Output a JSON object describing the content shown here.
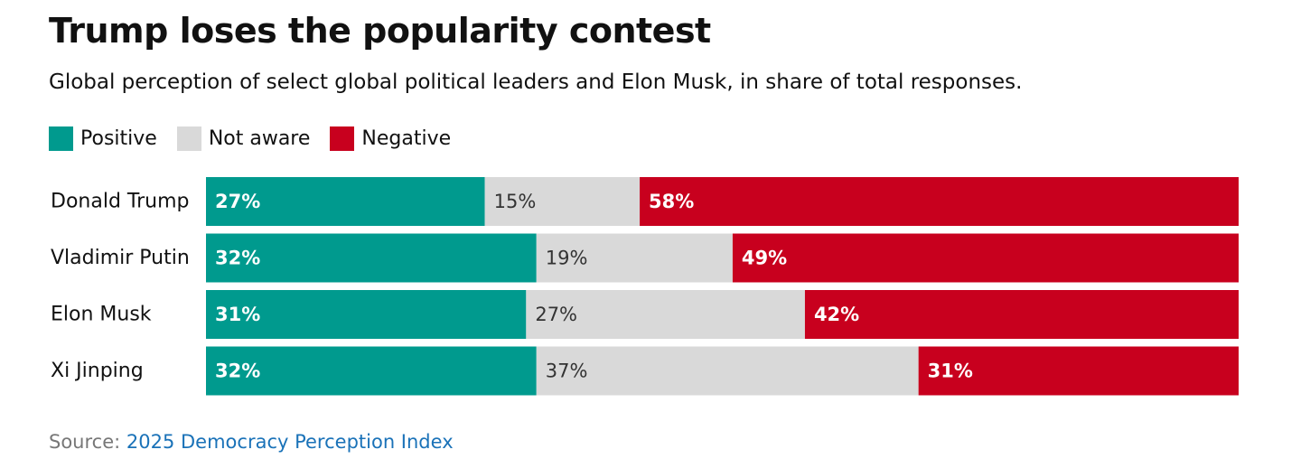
{
  "title": "Trump loses the popularity contest",
  "subtitle": "Global perception of select global political leaders and Elon Musk, in share of total responses.",
  "source": {
    "label": "Source:",
    "link_text": "2025 Democracy Perception Index"
  },
  "colors": {
    "positive": "#009a8e",
    "not_aware": "#d9d9d9",
    "negative": "#c8001e",
    "link": "#1a72b8",
    "label_on_dark": "#ffffff",
    "label_on_light": "#333333"
  },
  "chart_data": {
    "type": "bar",
    "orientation": "horizontal",
    "stacked": true,
    "title": "Trump loses the popularity contest",
    "subtitle": "Global perception of select global political leaders and Elon Musk, in share of total responses.",
    "legend_position": "top-left",
    "categories": [
      "Donald Trump",
      "Vladimir Putin",
      "Elon Musk",
      "Xi Jinping"
    ],
    "series": [
      {
        "name": "Positive",
        "values": [
          27,
          32,
          31,
          32
        ],
        "labels": [
          "27%",
          "32%",
          "31%",
          "32%"
        ]
      },
      {
        "name": "Not aware",
        "values": [
          15,
          19,
          27,
          37
        ],
        "labels": [
          "15%",
          "19%",
          "27%",
          "37%"
        ]
      },
      {
        "name": "Negative",
        "values": [
          58,
          49,
          42,
          31
        ],
        "labels": [
          "58%",
          "49%",
          "42%",
          "31%"
        ]
      }
    ],
    "xlim": [
      0,
      100
    ],
    "unit": "%",
    "grid": false
  }
}
